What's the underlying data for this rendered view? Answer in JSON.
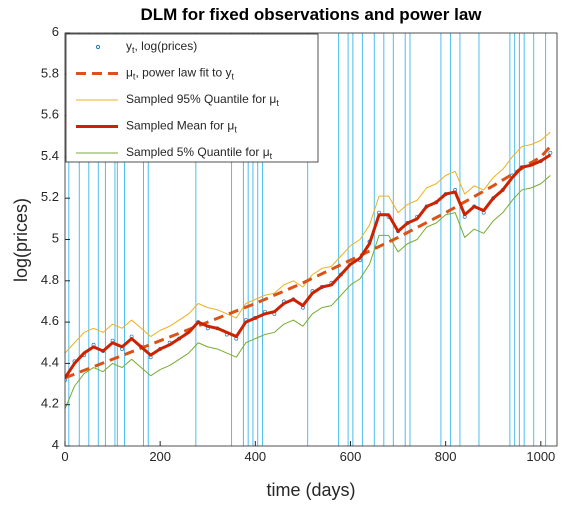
{
  "chart_data": {
    "type": "line",
    "title": "DLM for fixed observations and power law",
    "x_label": "time (days)",
    "y_label": "log(prices)",
    "xlim": [
      0,
      1034
    ],
    "ylim": [
      4,
      6
    ],
    "xticks": [
      0,
      200,
      400,
      600,
      800,
      1000
    ],
    "yticks": [
      4,
      4.2,
      4.4,
      4.6,
      4.8,
      5,
      5.2,
      5.4,
      5.6,
      5.8,
      6
    ],
    "grid": false,
    "legend": "northwest",
    "series": [
      {
        "name": "y_t, log(prices)",
        "color": "#4DBEEE",
        "style": "dots",
        "width": 1,
        "x": [
          0,
          8,
          20,
          30,
          40,
          50,
          60,
          70,
          80,
          85,
          100,
          105,
          110,
          120,
          125,
          140,
          160,
          165,
          175,
          180,
          200,
          220,
          240,
          260,
          275,
          280,
          300,
          320,
          340,
          350,
          360,
          375,
          380,
          385,
          395,
          400,
          405,
          415,
          420,
          440,
          460,
          480,
          500,
          510,
          520,
          540,
          560,
          575,
          580,
          595,
          600,
          605,
          620,
          625,
          640,
          650,
          660,
          670,
          680,
          690,
          700,
          715,
          720,
          725,
          740,
          760,
          780,
          790,
          800,
          810,
          820,
          830,
          840,
          860,
          870,
          880,
          900,
          920,
          935,
          940,
          945,
          955,
          960,
          965,
          980,
          985,
          1000,
          1010,
          1020
        ],
        "values": [
          4.32,
          null,
          4.41,
          null,
          4.44,
          null,
          4.49,
          null,
          4.46,
          null,
          4.51,
          null,
          null,
          4.47,
          null,
          4.53,
          4.48,
          null,
          null,
          4.43,
          4.47,
          4.5,
          4.52,
          4.56,
          null,
          4.6,
          4.57,
          4.57,
          4.54,
          null,
          4.52,
          null,
          4.61,
          null,
          null,
          4.62,
          null,
          null,
          4.65,
          4.64,
          4.7,
          4.71,
          4.67,
          null,
          4.75,
          4.77,
          4.79,
          null,
          4.83,
          null,
          4.89,
          null,
          4.9,
          null,
          4.99,
          null,
          5.13,
          null,
          5.11,
          null,
          5.04,
          null,
          5.08,
          null,
          5.11,
          5.16,
          5.18,
          null,
          5.22,
          null,
          5.24,
          null,
          5.11,
          5.16,
          null,
          5.13,
          5.2,
          5.24,
          null,
          5.31,
          null,
          null,
          5.35,
          null,
          5.37,
          null,
          5.38,
          null,
          5.42
        ]
      },
      {
        "name": "μ_t, power law fit to y_t",
        "color": "#D95319",
        "style": "dashed",
        "width": 3,
        "x": [
          0,
          100,
          200,
          300,
          400,
          500,
          600,
          700,
          800,
          900,
          1000,
          1020
        ],
        "values": [
          4.33,
          4.42,
          4.51,
          4.6,
          4.69,
          4.79,
          4.9,
          5.01,
          5.13,
          5.26,
          5.4,
          5.45
        ]
      },
      {
        "name": "Sampled 95% Quantile for μ_t",
        "color": "#EDB120",
        "style": "solid",
        "width": 1,
        "x": [
          0,
          20,
          40,
          60,
          80,
          100,
          120,
          140,
          160,
          180,
          200,
          220,
          240,
          260,
          280,
          300,
          320,
          340,
          360,
          380,
          400,
          420,
          440,
          460,
          480,
          500,
          520,
          540,
          560,
          580,
          600,
          620,
          640,
          660,
          680,
          700,
          720,
          740,
          760,
          780,
          800,
          820,
          840,
          860,
          880,
          900,
          920,
          940,
          960,
          980,
          1000,
          1020
        ],
        "values": [
          4.45,
          4.5,
          4.55,
          4.57,
          4.55,
          4.59,
          4.57,
          4.61,
          4.57,
          4.53,
          4.56,
          4.58,
          4.61,
          4.64,
          4.69,
          4.67,
          4.66,
          4.64,
          4.62,
          4.69,
          4.71,
          4.73,
          4.74,
          4.78,
          4.8,
          4.77,
          4.83,
          4.86,
          4.87,
          4.92,
          4.97,
          5.0,
          5.07,
          5.21,
          5.21,
          5.13,
          5.17,
          5.19,
          5.25,
          5.27,
          5.31,
          5.33,
          5.22,
          5.26,
          5.24,
          5.3,
          5.34,
          5.4,
          5.45,
          5.46,
          5.48,
          5.52
        ]
      },
      {
        "name": "Sampled Mean for μ_t",
        "color": "#CC2200",
        "style": "solid",
        "width": 3,
        "x": [
          0,
          20,
          40,
          60,
          80,
          100,
          120,
          140,
          160,
          180,
          200,
          220,
          240,
          260,
          280,
          300,
          320,
          340,
          360,
          380,
          400,
          420,
          440,
          460,
          480,
          500,
          520,
          540,
          560,
          580,
          600,
          620,
          640,
          660,
          680,
          700,
          720,
          740,
          760,
          780,
          800,
          820,
          840,
          860,
          880,
          900,
          920,
          940,
          960,
          980,
          1000,
          1020
        ],
        "values": [
          4.33,
          4.4,
          4.45,
          4.48,
          4.46,
          4.5,
          4.48,
          4.52,
          4.48,
          4.44,
          4.47,
          4.49,
          4.52,
          4.55,
          4.6,
          4.58,
          4.57,
          4.55,
          4.53,
          4.6,
          4.62,
          4.64,
          4.65,
          4.69,
          4.71,
          4.68,
          4.74,
          4.77,
          4.78,
          4.83,
          4.88,
          4.91,
          4.98,
          5.12,
          5.12,
          5.04,
          5.08,
          5.1,
          5.16,
          5.18,
          5.22,
          5.23,
          5.12,
          5.16,
          5.14,
          5.2,
          5.24,
          5.3,
          5.35,
          5.36,
          5.38,
          5.41
        ]
      },
      {
        "name": "Sampled 5% Quantile for μ_t",
        "color": "#77AC30",
        "style": "solid",
        "width": 1,
        "x": [
          0,
          20,
          40,
          60,
          80,
          100,
          120,
          140,
          160,
          180,
          200,
          220,
          240,
          260,
          280,
          300,
          320,
          340,
          360,
          380,
          400,
          420,
          440,
          460,
          480,
          500,
          520,
          540,
          560,
          580,
          600,
          620,
          640,
          660,
          680,
          700,
          720,
          740,
          760,
          780,
          800,
          820,
          840,
          860,
          880,
          900,
          920,
          940,
          960,
          980,
          1000,
          1020
        ],
        "values": [
          4.18,
          4.29,
          4.35,
          4.38,
          4.36,
          4.4,
          4.38,
          4.42,
          4.38,
          4.34,
          4.37,
          4.39,
          4.42,
          4.45,
          4.5,
          4.48,
          4.47,
          4.45,
          4.43,
          4.5,
          4.52,
          4.54,
          4.55,
          4.59,
          4.61,
          4.58,
          4.64,
          4.67,
          4.68,
          4.73,
          4.78,
          4.81,
          4.88,
          5.02,
          5.02,
          4.94,
          4.98,
          5.0,
          5.06,
          5.08,
          5.12,
          5.13,
          5.01,
          5.05,
          5.03,
          5.09,
          5.13,
          5.19,
          5.24,
          5.25,
          5.27,
          5.31
        ]
      }
    ]
  }
}
